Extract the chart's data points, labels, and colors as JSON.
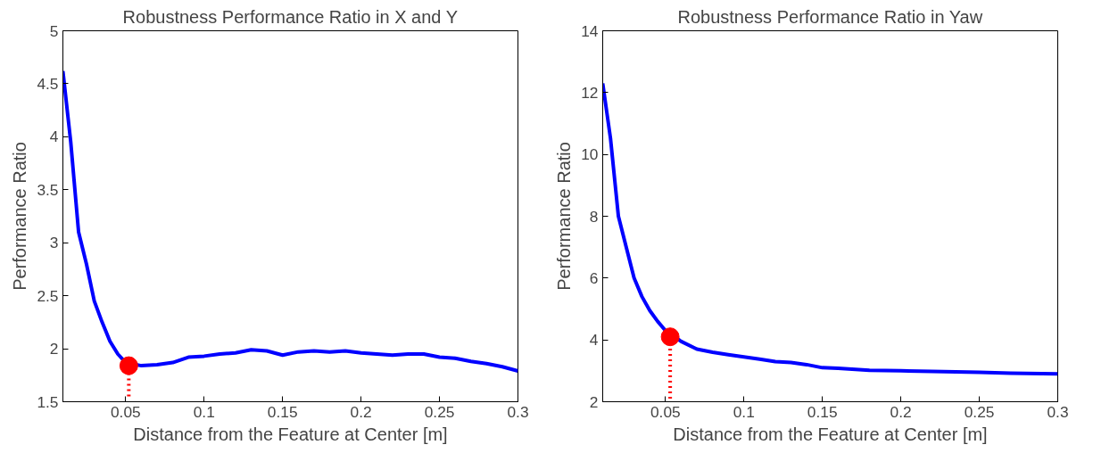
{
  "chart_data": [
    {
      "type": "line",
      "title": "Robustness Performance Ratio in X and Y",
      "xlabel": "Distance from the Feature at Center [m]",
      "ylabel": "Performance Ratio",
      "xlim": [
        0.01,
        0.3
      ],
      "ylim": [
        1.5,
        5
      ],
      "xticks": [
        0.05,
        0.1,
        0.15,
        0.2,
        0.25,
        0.3
      ],
      "yticks": [
        1.5,
        2,
        2.5,
        3,
        3.5,
        4,
        4.5,
        5
      ],
      "grid": false,
      "series": [
        {
          "color": "#0000ff",
          "line_style": "solid",
          "x": [
            0.01,
            0.015,
            0.02,
            0.025,
            0.03,
            0.035,
            0.04,
            0.045,
            0.05,
            0.06,
            0.07,
            0.08,
            0.09,
            0.1,
            0.11,
            0.12,
            0.13,
            0.14,
            0.15,
            0.16,
            0.17,
            0.18,
            0.19,
            0.2,
            0.21,
            0.22,
            0.23,
            0.24,
            0.25,
            0.26,
            0.27,
            0.28,
            0.29,
            0.3
          ],
          "values": [
            4.62,
            3.95,
            3.1,
            2.8,
            2.45,
            2.25,
            2.07,
            1.95,
            1.87,
            1.84,
            1.85,
            1.87,
            1.92,
            1.93,
            1.95,
            1.96,
            1.99,
            1.98,
            1.94,
            1.97,
            1.98,
            1.97,
            1.98,
            1.96,
            1.95,
            1.94,
            1.95,
            1.95,
            1.92,
            1.91,
            1.88,
            1.86,
            1.83,
            1.79
          ]
        },
        {
          "type": "line",
          "color": "#ff0000",
          "line_style": "dotted",
          "x": [
            0.052,
            0.052
          ],
          "values": [
            1.55,
            1.84
          ]
        },
        {
          "type": "scatter",
          "color": "#ff0000",
          "marker": "circle",
          "x": [
            0.052
          ],
          "values": [
            1.84
          ]
        }
      ]
    },
    {
      "type": "line",
      "title": "Robustness Performance Ratio in Yaw",
      "xlabel": "Distance from the Feature at Center [m]",
      "ylabel": "Performance Ratio",
      "xlim": [
        0.01,
        0.3
      ],
      "ylim": [
        2,
        14
      ],
      "xticks": [
        0.05,
        0.1,
        0.15,
        0.2,
        0.25,
        0.3
      ],
      "yticks": [
        2,
        4,
        6,
        8,
        10,
        12,
        14
      ],
      "grid": false,
      "series": [
        {
          "color": "#0000ff",
          "line_style": "solid",
          "x": [
            0.01,
            0.015,
            0.02,
            0.025,
            0.03,
            0.035,
            0.04,
            0.045,
            0.05,
            0.06,
            0.07,
            0.08,
            0.09,
            0.1,
            0.11,
            0.12,
            0.13,
            0.14,
            0.15,
            0.16,
            0.18,
            0.2,
            0.22,
            0.25,
            0.27,
            0.3
          ],
          "values": [
            12.3,
            10.5,
            8.0,
            7.0,
            6.0,
            5.4,
            4.95,
            4.6,
            4.3,
            3.95,
            3.7,
            3.6,
            3.52,
            3.45,
            3.38,
            3.3,
            3.27,
            3.2,
            3.1,
            3.08,
            3.02,
            3.0,
            2.98,
            2.95,
            2.92,
            2.9
          ]
        },
        {
          "type": "line",
          "color": "#ff0000",
          "line_style": "dotted",
          "x": [
            0.053,
            0.053
          ],
          "values": [
            2.1,
            4.1
          ]
        },
        {
          "type": "scatter",
          "color": "#ff0000",
          "marker": "circle",
          "x": [
            0.053
          ],
          "values": [
            4.1
          ]
        }
      ]
    }
  ]
}
